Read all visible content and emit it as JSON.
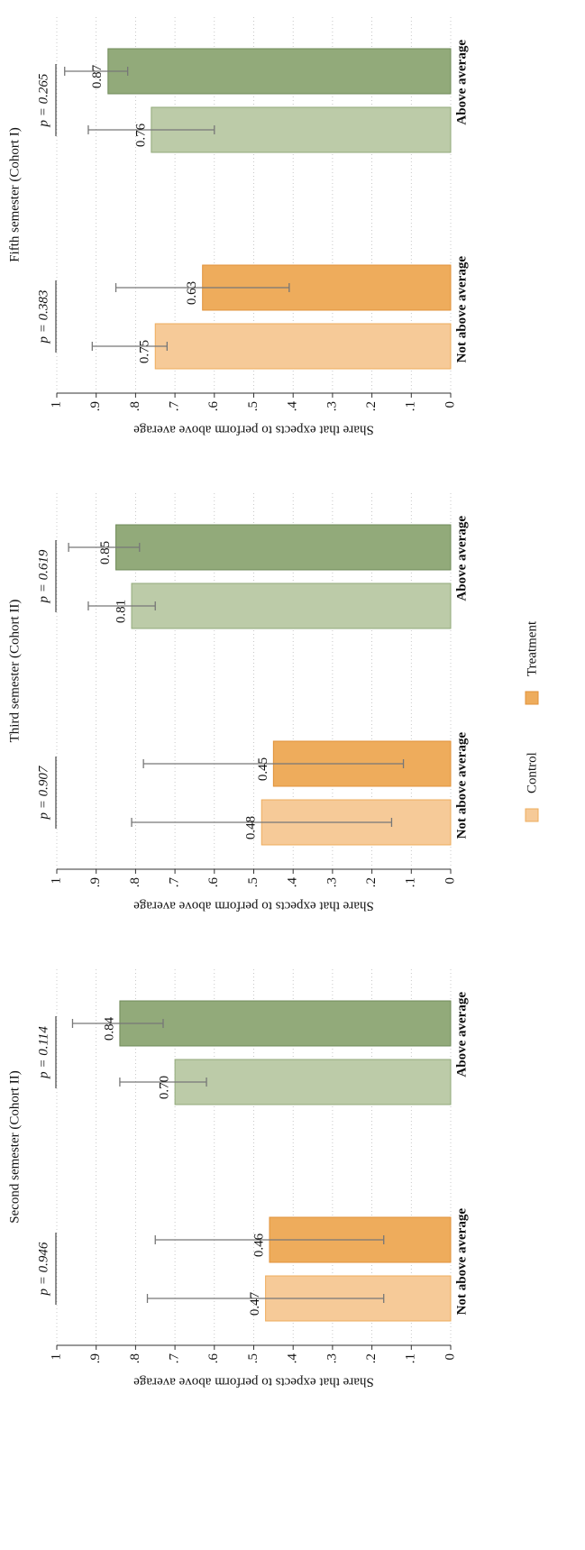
{
  "chart_data": [
    {
      "type": "bar",
      "title": "Second semester (Cohort II)",
      "ylabel": "Share that expects to perform above average",
      "categories": [
        "Not above average",
        "Above average"
      ],
      "series": [
        {
          "name": "Control",
          "colors": [
            "#f6ca98",
            "#bccba8"
          ],
          "edgecolors": [
            "#eeac5c",
            "#92aa7a"
          ],
          "values": [
            0.47,
            0.7
          ],
          "value_labels": [
            "0.47",
            "0.70"
          ],
          "ci": [
            [
              0.17,
              0.77
            ],
            [
              0.62,
              0.84
            ]
          ]
        },
        {
          "name": "Treatment",
          "colors": [
            "#eeac5c",
            "#92aa7a"
          ],
          "edgecolors": [
            "#e0923a",
            "#6f8a58"
          ],
          "values": [
            0.46,
            0.84
          ],
          "value_labels": [
            "0.46",
            "0.84"
          ],
          "ci": [
            [
              0.17,
              0.75
            ],
            [
              0.73,
              0.96
            ]
          ]
        }
      ],
      "annotations": [
        "p = 0.946",
        "p = 0.114"
      ],
      "ylim": [
        0,
        1
      ],
      "yticks": [
        {
          "value": 0,
          "label": "0"
        },
        {
          "value": 0.1,
          "label": ".1"
        },
        {
          "value": 0.2,
          "label": ".2"
        },
        {
          "value": 0.3,
          "label": ".3"
        },
        {
          "value": 0.4,
          "label": ".4"
        },
        {
          "value": 0.5,
          "label": ".5"
        },
        {
          "value": 0.6,
          "label": ".6"
        },
        {
          "value": 0.7,
          "label": ".7"
        },
        {
          "value": 0.8,
          "label": ".8"
        },
        {
          "value": 0.9,
          "label": ".9"
        },
        1
      ],
      "grid": true
    },
    {
      "type": "bar",
      "title": "Third semester (Cohort II)",
      "ylabel": "Share that expects to perform above average",
      "categories": [
        "Not above average",
        "Above average"
      ],
      "series": [
        {
          "name": "Control",
          "colors": [
            "#f6ca98",
            "#bccba8"
          ],
          "edgecolors": [
            "#eeac5c",
            "#92aa7a"
          ],
          "values": [
            0.48,
            0.81
          ],
          "value_labels": [
            "0.48",
            "0.81"
          ],
          "ci": [
            [
              0.15,
              0.81
            ],
            [
              0.75,
              0.92
            ]
          ]
        },
        {
          "name": "Treatment",
          "colors": [
            "#eeac5c",
            "#92aa7a"
          ],
          "edgecolors": [
            "#e0923a",
            "#6f8a58"
          ],
          "values": [
            0.45,
            0.85
          ],
          "value_labels": [
            "0.45",
            "0.85"
          ],
          "ci": [
            [
              0.12,
              0.78
            ],
            [
              0.79,
              0.97
            ]
          ]
        }
      ],
      "annotations": [
        "p = 0.907",
        "p = 0.619"
      ],
      "ylim": [
        0,
        1
      ],
      "yticks": [
        {
          "value": 0,
          "label": "0"
        },
        {
          "value": 0.1,
          "label": ".1"
        },
        {
          "value": 0.2,
          "label": ".2"
        },
        {
          "value": 0.3,
          "label": ".3"
        },
        {
          "value": 0.4,
          "label": ".4"
        },
        {
          "value": 0.5,
          "label": ".5"
        },
        {
          "value": 0.6,
          "label": ".6"
        },
        {
          "value": 0.7,
          "label": ".7"
        },
        {
          "value": 0.8,
          "label": ".8"
        },
        {
          "value": 0.9,
          "label": ".9"
        },
        1
      ],
      "grid": true
    },
    {
      "type": "bar",
      "title": "Fifth semester (Cohort I)",
      "ylabel": "Share that expects to perform above average",
      "categories": [
        "Not above average",
        "Above average"
      ],
      "series": [
        {
          "name": "Control",
          "colors": [
            "#f6ca98",
            "#bccba8"
          ],
          "edgecolors": [
            "#eeac5c",
            "#92aa7a"
          ],
          "values": [
            0.75,
            0.76
          ],
          "value_labels": [
            "0.75",
            "0.76"
          ],
          "ci": [
            [
              0.72,
              0.91
            ],
            [
              0.6,
              0.92
            ]
          ]
        },
        {
          "name": "Treatment",
          "colors": [
            "#eeac5c",
            "#92aa7a"
          ],
          "edgecolors": [
            "#e0923a",
            "#6f8a58"
          ],
          "values": [
            0.63,
            0.87
          ],
          "value_labels": [
            "0.63",
            "0.87"
          ],
          "ci": [
            [
              0.41,
              0.85
            ],
            [
              0.82,
              0.98
            ]
          ]
        }
      ],
      "annotations": [
        "p = 0.383",
        "p = 0.265"
      ],
      "ylim": [
        0,
        1
      ],
      "yticks": [
        {
          "value": 0,
          "label": "0"
        },
        {
          "value": 0.1,
          "label": ".1"
        },
        {
          "value": 0.2,
          "label": ".2"
        },
        {
          "value": 0.3,
          "label": ".3"
        },
        {
          "value": 0.4,
          "label": ".4"
        },
        {
          "value": 0.5,
          "label": ".5"
        },
        {
          "value": 0.6,
          "label": ".6"
        },
        {
          "value": 0.7,
          "label": ".7"
        },
        {
          "value": 0.8,
          "label": ".8"
        },
        {
          "value": 0.9,
          "label": ".9"
        },
        1
      ],
      "grid": true
    }
  ]
}
